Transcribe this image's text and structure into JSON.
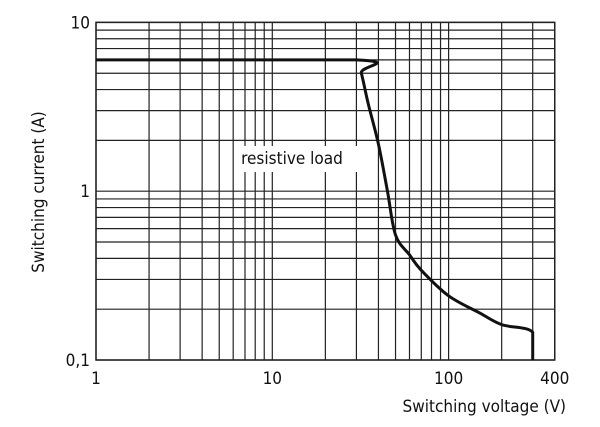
{
  "chart_data": {
    "type": "line",
    "title": "",
    "xlabel": "Switching voltage (V)",
    "ylabel": "Switching current (A)",
    "xscale": "log",
    "yscale": "log",
    "xlim": [
      1,
      400
    ],
    "ylim": [
      0.1,
      10
    ],
    "grid": true,
    "x_tick_labels": [
      {
        "value": 1,
        "label": "1"
      },
      {
        "value": 10,
        "label": "10"
      },
      {
        "value": 100,
        "label": "100"
      },
      {
        "value": 400,
        "label": "400"
      }
    ],
    "y_tick_labels": [
      {
        "value": 10,
        "label": "10"
      },
      {
        "value": 1,
        "label": "1"
      },
      {
        "value": 0.1,
        "label": "0,1"
      }
    ],
    "annotation": "resistive load",
    "line_color": "#111111",
    "series": [
      {
        "x": [
          1,
          30,
          32,
          35,
          40,
          45,
          50,
          60,
          70,
          100,
          150,
          200,
          300,
          300
        ],
        "y": [
          6,
          6,
          5,
          3.3,
          1.9,
          1.0,
          0.55,
          0.42,
          0.34,
          0.24,
          0.19,
          0.162,
          0.146,
          0.1
        ]
      }
    ]
  }
}
